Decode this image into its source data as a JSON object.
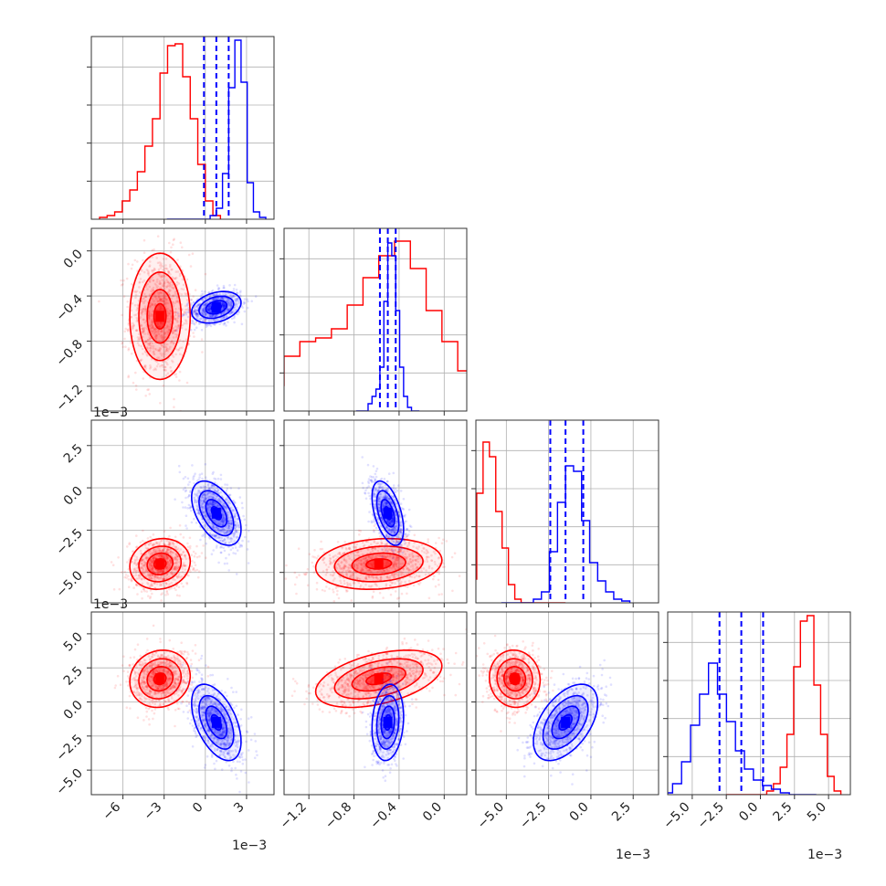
{
  "chart_data": {
    "type": "corner",
    "params": [
      {
        "range": [
          -8.3,
          5.0
        ],
        "ticks": [
          -6,
          -3,
          0,
          3
        ],
        "tick_labels": [
          "−6",
          "−3",
          "0",
          "3"
        ],
        "exponent": "1e−3"
      },
      {
        "range": [
          -1.42,
          0.2
        ],
        "ticks": [
          -1.2,
          -0.8,
          -0.4,
          0.0
        ],
        "tick_labels": [
          "−1.2",
          "−0.8",
          "−0.4",
          "0.0"
        ],
        "exponent": "1e−3"
      },
      {
        "range": [
          -6.8,
          4.0
        ],
        "ticks": [
          -5.0,
          -2.5,
          0.0,
          2.5
        ],
        "tick_labels": [
          "−5.0",
          "−2.5",
          "0.0",
          "2.5"
        ],
        "exponent": "1e−3"
      },
      {
        "range": [
          -6.8,
          6.6
        ],
        "ticks": [
          -5.0,
          -2.5,
          0.0,
          2.5,
          5.0
        ],
        "tick_labels": [
          "−5.0",
          "−2.5",
          "0.0",
          "2.5",
          "5.0"
        ],
        "exponent": "1e−3"
      }
    ],
    "series": [
      {
        "color": "#ff0000",
        "mean": [
          -3.3,
          -0.58,
          -4.5,
          1.7
        ],
        "sd": [
          1.1,
          0.28,
          0.75,
          1.05
        ],
        "quantiles": null,
        "hist_heights": [
          [
            0.01,
            0.02,
            0.04,
            0.1,
            0.16,
            0.26,
            0.4,
            0.55,
            0.8,
            0.95,
            0.96,
            0.78,
            0.55,
            0.3,
            0.1,
            0.02
          ],
          [
            0.08,
            0.14,
            0.3,
            0.38,
            0.4,
            0.45,
            0.58,
            0.73,
            0.85,
            0.93,
            0.78,
            0.55,
            0.38,
            0.22,
            0.18,
            0.06
          ],
          [
            0.0,
            0.13,
            0.6,
            0.88,
            0.8,
            0.5,
            0.3,
            0.1,
            0.02,
            0.0,
            0.0,
            0.0,
            0.0,
            0.0,
            0.0,
            0.0
          ],
          [
            0.0,
            0.0,
            0.0,
            0.0,
            0.0,
            0.0,
            0.02,
            0.06,
            0.15,
            0.33,
            0.7,
            0.95,
            0.98,
            0.6,
            0.33,
            0.1,
            0.02
          ]
        ]
      },
      {
        "color": "#0000ff",
        "mean": [
          0.8,
          -0.5,
          -1.5,
          -1.5
        ],
        "sd": [
          0.9,
          0.07,
          0.95,
          1.4
        ],
        "quantiles": [
          [
            -0.1,
            0.8,
            1.7
          ],
          [
            -0.57,
            -0.5,
            -0.43
          ],
          [
            -2.4,
            -1.5,
            -0.45
          ],
          [
            -3.0,
            -1.4,
            0.2
          ]
        ],
        "hist_heights": [
          [
            0.0,
            0.0,
            0.0,
            0.0,
            0.0,
            0.0,
            0.0,
            0.02,
            0.06,
            0.25,
            0.72,
            0.98,
            0.75,
            0.2,
            0.04,
            0.01
          ],
          [
            0.0,
            0.0,
            0.0,
            0.04,
            0.08,
            0.12,
            0.24,
            0.6,
            0.92,
            0.85,
            0.55,
            0.24,
            0.08,
            0.02,
            0.0,
            0.0
          ],
          [
            0.0,
            0.0,
            0.0,
            0.0,
            0.02,
            0.06,
            0.28,
            0.55,
            0.75,
            0.72,
            0.45,
            0.22,
            0.12,
            0.06,
            0.02,
            0.01
          ],
          [
            0.01,
            0.06,
            0.18,
            0.38,
            0.55,
            0.72,
            0.55,
            0.4,
            0.24,
            0.14,
            0.08,
            0.05,
            0.03,
            0.01,
            0.0,
            0.0,
            0.0
          ]
        ]
      }
    ],
    "grid": true,
    "colors": {
      "red": "#ff0000",
      "blue": "#0000ff",
      "grid": "#b0b0b0"
    }
  }
}
